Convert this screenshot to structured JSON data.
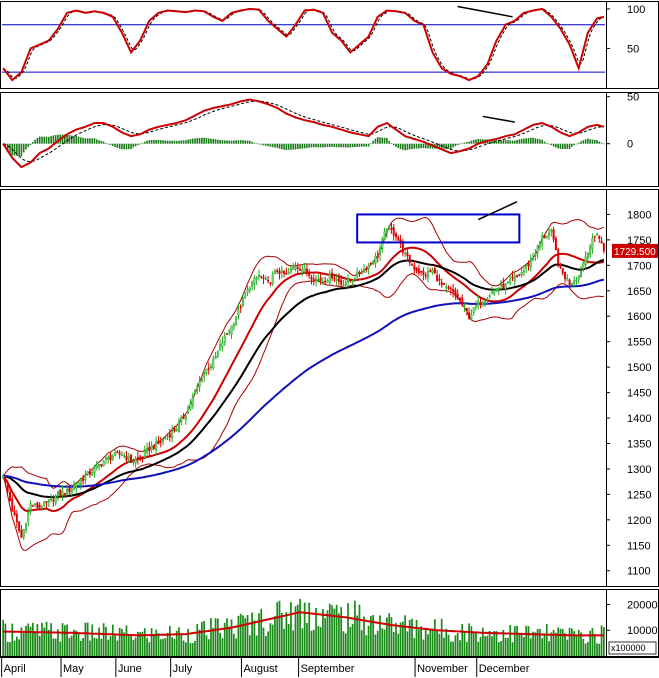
{
  "chart_data": {
    "type": "financial-composite",
    "months": [
      "April",
      "May",
      "June",
      "July",
      "August",
      "September",
      "November",
      "December"
    ],
    "last_price_label": "1729.500",
    "volume_multiplier_label": "x100000",
    "panels": {
      "stochastic": {
        "yticks": [
          "100",
          "50"
        ],
        "ylim": [
          0,
          110
        ]
      },
      "macd": {
        "yticks": [
          "50",
          "0"
        ],
        "ylim": [
          -45,
          55
        ]
      },
      "price": {
        "yticks": [
          "1800",
          "1750",
          "1700",
          "1650",
          "1600",
          "1550",
          "1500",
          "1450",
          "1400",
          "1350",
          "1300",
          "1250",
          "1200",
          "1150",
          "1100"
        ],
        "ylim": [
          1070,
          1850
        ]
      },
      "volume": {
        "yticks": [
          "20000",
          "10000"
        ],
        "ylim": [
          0,
          26000
        ]
      }
    },
    "price_anchors": [
      [
        0,
        1290
      ],
      [
        4,
        1220
      ],
      [
        8,
        1165
      ],
      [
        12,
        1230
      ],
      [
        16,
        1225
      ],
      [
        20,
        1235
      ],
      [
        24,
        1250
      ],
      [
        28,
        1255
      ],
      [
        32,
        1270
      ],
      [
        36,
        1285
      ],
      [
        40,
        1300
      ],
      [
        44,
        1315
      ],
      [
        48,
        1325
      ],
      [
        52,
        1330
      ],
      [
        56,
        1315
      ],
      [
        60,
        1320
      ],
      [
        64,
        1340
      ],
      [
        68,
        1350
      ],
      [
        72,
        1365
      ],
      [
        76,
        1380
      ],
      [
        80,
        1410
      ],
      [
        84,
        1450
      ],
      [
        88,
        1490
      ],
      [
        92,
        1510
      ],
      [
        96,
        1550
      ],
      [
        100,
        1580
      ],
      [
        104,
        1620
      ],
      [
        108,
        1660
      ],
      [
        112,
        1680
      ],
      [
        116,
        1665
      ],
      [
        120,
        1690
      ],
      [
        124,
        1680
      ],
      [
        128,
        1700
      ],
      [
        132,
        1690
      ],
      [
        136,
        1675
      ],
      [
        140,
        1670
      ],
      [
        144,
        1680
      ],
      [
        148,
        1665
      ],
      [
        152,
        1670
      ],
      [
        156,
        1685
      ],
      [
        160,
        1700
      ],
      [
        164,
        1720
      ],
      [
        168,
        1775
      ],
      [
        172,
        1760
      ],
      [
        176,
        1720
      ],
      [
        180,
        1695
      ],
      [
        184,
        1680
      ],
      [
        188,
        1690
      ],
      [
        192,
        1660
      ],
      [
        196,
        1650
      ],
      [
        200,
        1630
      ],
      [
        204,
        1600
      ],
      [
        208,
        1625
      ],
      [
        212,
        1640
      ],
      [
        216,
        1655
      ],
      [
        220,
        1660
      ],
      [
        224,
        1675
      ],
      [
        228,
        1690
      ],
      [
        232,
        1715
      ],
      [
        236,
        1755
      ],
      [
        240,
        1765
      ],
      [
        244,
        1690
      ],
      [
        248,
        1665
      ],
      [
        252,
        1680
      ],
      [
        256,
        1730
      ],
      [
        260,
        1765
      ],
      [
        263,
        1729.5
      ]
    ],
    "stochastic_anchors": [
      [
        0,
        25
      ],
      [
        4,
        10
      ],
      [
        8,
        20
      ],
      [
        12,
        50
      ],
      [
        16,
        55
      ],
      [
        20,
        60
      ],
      [
        24,
        75
      ],
      [
        28,
        95
      ],
      [
        32,
        98
      ],
      [
        36,
        95
      ],
      [
        40,
        97
      ],
      [
        44,
        95
      ],
      [
        48,
        90
      ],
      [
        52,
        70
      ],
      [
        56,
        45
      ],
      [
        60,
        60
      ],
      [
        64,
        85
      ],
      [
        68,
        95
      ],
      [
        72,
        98
      ],
      [
        76,
        97
      ],
      [
        80,
        96
      ],
      [
        84,
        98
      ],
      [
        88,
        97
      ],
      [
        92,
        90
      ],
      [
        96,
        85
      ],
      [
        100,
        95
      ],
      [
        104,
        98
      ],
      [
        108,
        100
      ],
      [
        112,
        99
      ],
      [
        116,
        85
      ],
      [
        120,
        75
      ],
      [
        124,
        65
      ],
      [
        128,
        80
      ],
      [
        132,
        98
      ],
      [
        136,
        99
      ],
      [
        140,
        95
      ],
      [
        144,
        70
      ],
      [
        148,
        60
      ],
      [
        152,
        45
      ],
      [
        156,
        55
      ],
      [
        160,
        65
      ],
      [
        164,
        90
      ],
      [
        168,
        98
      ],
      [
        172,
        97
      ],
      [
        176,
        95
      ],
      [
        180,
        85
      ],
      [
        184,
        80
      ],
      [
        188,
        45
      ],
      [
        192,
        25
      ],
      [
        196,
        18
      ],
      [
        200,
        15
      ],
      [
        204,
        10
      ],
      [
        208,
        15
      ],
      [
        212,
        30
      ],
      [
        216,
        60
      ],
      [
        220,
        80
      ],
      [
        224,
        85
      ],
      [
        228,
        95
      ],
      [
        232,
        98
      ],
      [
        236,
        100
      ],
      [
        240,
        90
      ],
      [
        244,
        75
      ],
      [
        248,
        55
      ],
      [
        252,
        25
      ],
      [
        256,
        70
      ],
      [
        260,
        88
      ],
      [
        263,
        90
      ]
    ],
    "macd_anchors": [
      [
        0,
        0
      ],
      [
        4,
        -15
      ],
      [
        8,
        -25
      ],
      [
        12,
        -20
      ],
      [
        16,
        -10
      ],
      [
        20,
        -5
      ],
      [
        24,
        3
      ],
      [
        28,
        10
      ],
      [
        32,
        15
      ],
      [
        36,
        18
      ],
      [
        40,
        22
      ],
      [
        44,
        22
      ],
      [
        48,
        18
      ],
      [
        52,
        12
      ],
      [
        56,
        8
      ],
      [
        60,
        10
      ],
      [
        64,
        15
      ],
      [
        68,
        18
      ],
      [
        72,
        20
      ],
      [
        76,
        22
      ],
      [
        80,
        25
      ],
      [
        84,
        30
      ],
      [
        88,
        35
      ],
      [
        92,
        38
      ],
      [
        96,
        40
      ],
      [
        100,
        42
      ],
      [
        104,
        45
      ],
      [
        108,
        47
      ],
      [
        112,
        45
      ],
      [
        116,
        42
      ],
      [
        120,
        38
      ],
      [
        124,
        32
      ],
      [
        128,
        28
      ],
      [
        132,
        25
      ],
      [
        136,
        23
      ],
      [
        140,
        20
      ],
      [
        144,
        18
      ],
      [
        148,
        15
      ],
      [
        152,
        12
      ],
      [
        156,
        10
      ],
      [
        160,
        8
      ],
      [
        164,
        18
      ],
      [
        168,
        22
      ],
      [
        172,
        15
      ],
      [
        176,
        8
      ],
      [
        180,
        5
      ],
      [
        184,
        2
      ],
      [
        188,
        -2
      ],
      [
        192,
        -6
      ],
      [
        196,
        -10
      ],
      [
        200,
        -8
      ],
      [
        204,
        -5
      ],
      [
        208,
        0
      ],
      [
        212,
        3
      ],
      [
        216,
        5
      ],
      [
        220,
        8
      ],
      [
        224,
        10
      ],
      [
        228,
        15
      ],
      [
        232,
        20
      ],
      [
        236,
        22
      ],
      [
        240,
        18
      ],
      [
        244,
        12
      ],
      [
        248,
        8
      ],
      [
        252,
        12
      ],
      [
        256,
        18
      ],
      [
        260,
        20
      ],
      [
        263,
        18
      ]
    ],
    "volume_avg_anchors": [
      [
        0,
        9500
      ],
      [
        30,
        9000
      ],
      [
        60,
        8000
      ],
      [
        80,
        8500
      ],
      [
        100,
        11000
      ],
      [
        120,
        15000
      ],
      [
        130,
        17000
      ],
      [
        150,
        15000
      ],
      [
        170,
        12000
      ],
      [
        190,
        10000
      ],
      [
        210,
        9000
      ],
      [
        230,
        8500
      ],
      [
        250,
        8000
      ],
      [
        263,
        8000
      ]
    ],
    "annotations": {
      "stochastic_trendline": [
        [
          199,
          103
        ],
        [
          223,
          90
        ]
      ],
      "macd_trendline": [
        [
          210,
          29
        ],
        [
          224,
          23
        ]
      ],
      "price_trendline": [
        [
          208,
          1790
        ],
        [
          225,
          1825
        ]
      ],
      "highlight_box": {
        "x": [
          155,
          226
        ],
        "y": [
          1745,
          1800
        ]
      }
    }
  }
}
